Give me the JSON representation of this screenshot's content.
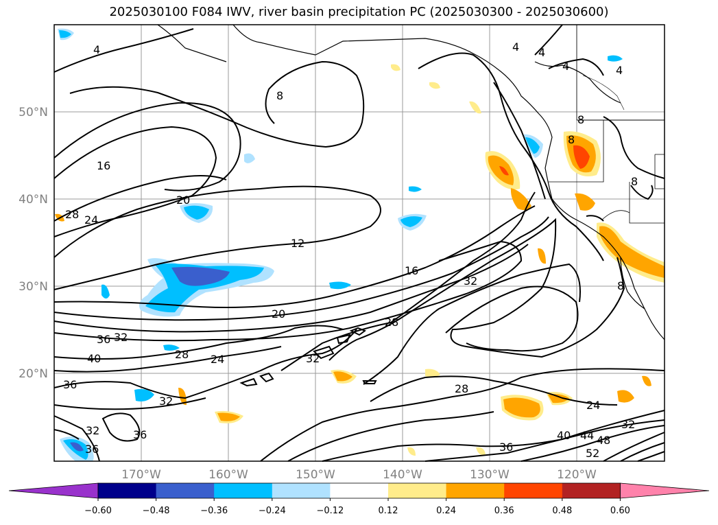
{
  "title": "2025030100 F084 IWV, river basin precipitation PC (2025030300 - 2025030600)",
  "axes": {
    "lon_ticks": [
      "170°W",
      "160°W",
      "150°W",
      "140°W",
      "130°W",
      "120°W"
    ],
    "lat_ticks": [
      "50°N",
      "40°N",
      "30°N",
      "20°N"
    ]
  },
  "contour_labels": [
    "4",
    "4",
    "4",
    "4",
    "4",
    "8",
    "8",
    "8",
    "8",
    "8",
    "16",
    "16",
    "20",
    "20",
    "24",
    "24",
    "24",
    "28",
    "28",
    "28",
    "28",
    "32",
    "32",
    "32",
    "32",
    "32",
    "32",
    "36",
    "36",
    "36",
    "36",
    "36",
    "40",
    "40",
    "44",
    "48",
    "52",
    "12"
  ],
  "colorbar": {
    "ticks": [
      "−0.60",
      "−0.48",
      "−0.36",
      "−0.24",
      "−0.12",
      "0.12",
      "0.24",
      "0.36",
      "0.48",
      "0.60"
    ],
    "colors": [
      "#9932cc",
      "#00008b",
      "#3a5fcd",
      "#00bfff",
      "#b0e2ff",
      "#ffffff",
      "#ffec8b",
      "#ffa500",
      "#ff4500",
      "#b22222",
      "#ff82ab"
    ]
  }
}
